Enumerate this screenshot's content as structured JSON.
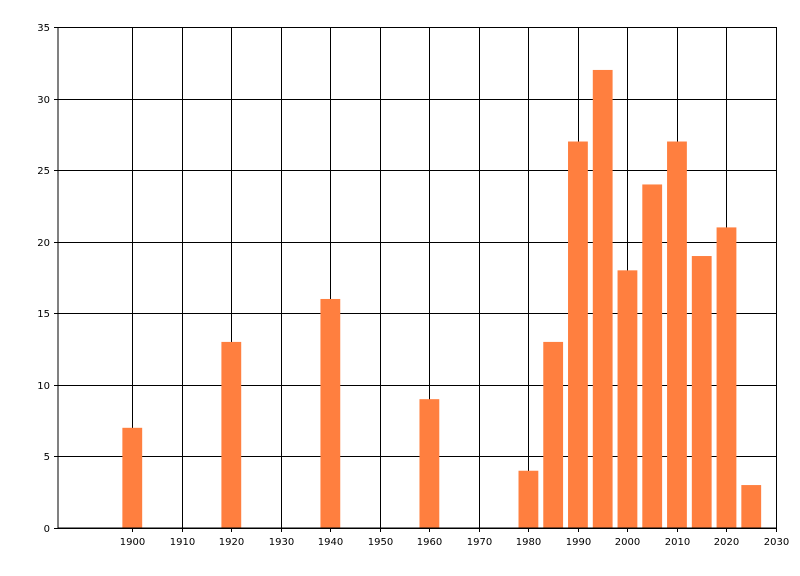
{
  "chart_data": {
    "type": "bar",
    "x": [
      1900,
      1920,
      1940,
      1960,
      1980,
      1985,
      1990,
      1995,
      2000,
      2005,
      2010,
      2015,
      2020,
      2025
    ],
    "values": [
      7,
      13,
      16,
      9,
      4,
      13,
      27,
      32,
      18,
      24,
      27,
      19,
      21,
      3
    ],
    "xlim": [
      1885,
      2030
    ],
    "ylim": [
      0,
      35
    ],
    "x_ticks": [
      "1900",
      "1910",
      "1920",
      "1930",
      "1940",
      "1950",
      "1960",
      "1970",
      "1980",
      "1990",
      "2000",
      "2010",
      "2020",
      "2030"
    ],
    "y_ticks": [
      "0",
      "5",
      "10",
      "15",
      "20",
      "25",
      "30",
      "35"
    ],
    "grid": true,
    "bar_color": "#ff7f3f",
    "title": "",
    "xlabel": "",
    "ylabel": ""
  }
}
